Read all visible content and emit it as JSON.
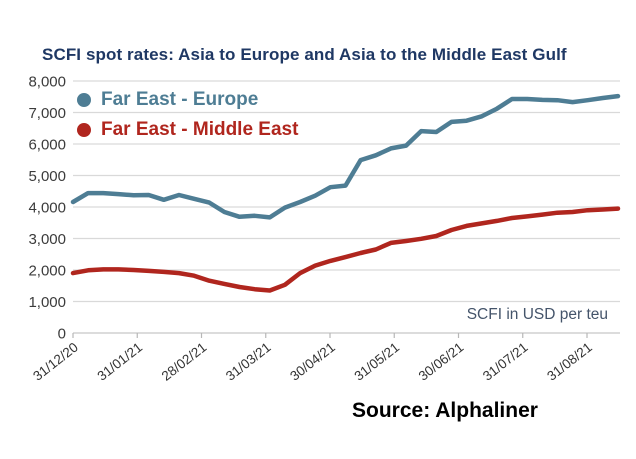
{
  "chart_data": {
    "type": "line",
    "title": "SCFI spot rates: Asia to Europe and Asia to the Middle East Gulf",
    "annotation": "SCFI in USD per teu",
    "source": "Source: Alphaliner",
    "grid": "horizontal",
    "legend_position": "top-left",
    "ylim": [
      0,
      8000
    ],
    "ytick_step": 1000,
    "y_tick_labels": [
      "0",
      "1,000",
      "2,000",
      "3,000",
      "4,000",
      "5,000",
      "6,000",
      "7,000",
      "8,000"
    ],
    "x_tick_labels": [
      "31/12/20",
      "31/01/21",
      "28/02/21",
      "31/03/21",
      "30/04/21",
      "31/05/21",
      "30/06/21",
      "31/07/21",
      "31/08/21"
    ],
    "x": [
      "31/12/20",
      "08/01/21",
      "15/01/21",
      "22/01/21",
      "29/01/21",
      "05/02/21",
      "12/02/21",
      "19/02/21",
      "26/02/21",
      "05/03/21",
      "12/03/21",
      "19/03/21",
      "26/03/21",
      "02/04/21",
      "09/04/21",
      "16/04/21",
      "23/04/21",
      "30/04/21",
      "07/05/21",
      "14/05/21",
      "21/05/21",
      "28/05/21",
      "04/06/21",
      "11/06/21",
      "18/06/21",
      "25/06/21",
      "02/07/21",
      "09/07/21",
      "16/07/21",
      "23/07/21",
      "30/07/21",
      "06/08/21",
      "13/08/21",
      "20/08/21",
      "27/08/21",
      "03/09/21",
      "10/09/21"
    ],
    "series": [
      {
        "name": "Far East - Europe",
        "color": "#4E7D94",
        "values": [
          4160,
          4440,
          4440,
          4410,
          4370,
          4380,
          4230,
          4380,
          4260,
          4140,
          3840,
          3690,
          3720,
          3670,
          3980,
          4160,
          4360,
          4630,
          4680,
          5490,
          5640,
          5860,
          5950,
          6410,
          6380,
          6700,
          6740,
          6880,
          7120,
          7430,
          7430,
          7400,
          7390,
          7330,
          7390,
          7460,
          7520
        ]
      },
      {
        "name": "Far East - Middle East",
        "color": "#B0261E",
        "values": [
          1900,
          1990,
          2020,
          2020,
          2000,
          1970,
          1940,
          1900,
          1820,
          1660,
          1560,
          1460,
          1390,
          1350,
          1530,
          1900,
          2140,
          2290,
          2410,
          2540,
          2650,
          2860,
          2920,
          2990,
          3080,
          3270,
          3400,
          3480,
          3560,
          3650,
          3700,
          3760,
          3820,
          3840,
          3900,
          3920,
          3950
        ]
      }
    ],
    "colors": {
      "title": "#1F3864",
      "gridline": "#D9D9D9",
      "axis_line": "#C6C6C6",
      "tick_label": "#3B3B3B",
      "annotation": "#44546A",
      "source": "#000000"
    }
  }
}
